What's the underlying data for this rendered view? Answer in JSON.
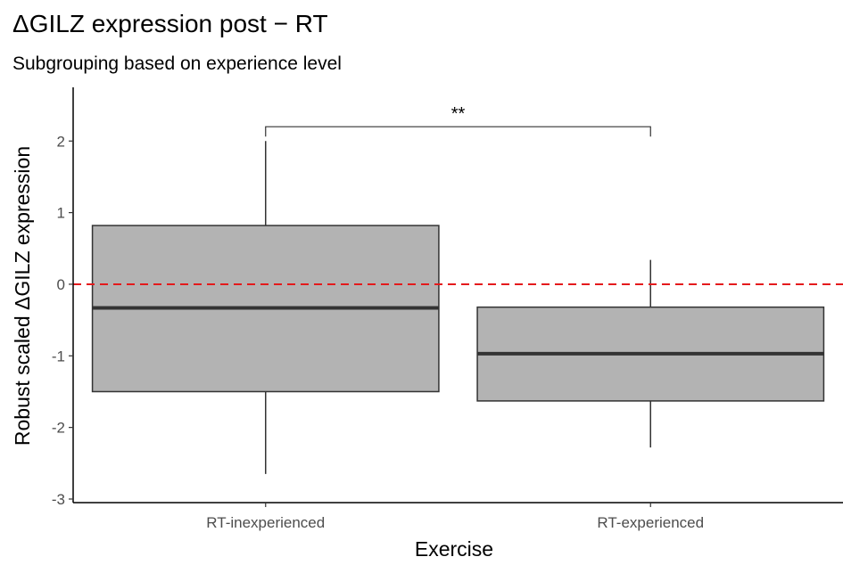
{
  "chart_data": {
    "type": "box",
    "title": "ΔGILZ expression post − RT",
    "subtitle": "Subgrouping based on experience level",
    "xlabel": "Exercise",
    "ylabel": "Robust scaled ΔGILZ expression",
    "ylim": [
      -3.05,
      2.75
    ],
    "yticks": [
      -3,
      -2,
      -1,
      0,
      1,
      2
    ],
    "ytick_labels": [
      "-3",
      "-2",
      "-1",
      "0",
      "1",
      "2"
    ],
    "categories": [
      "RT-inexperienced",
      "RT-experienced"
    ],
    "boxes": [
      {
        "category": "RT-inexperienced",
        "whisker_low": -2.65,
        "q1": -1.5,
        "median": -0.33,
        "q3": 0.82,
        "whisker_high": 2.0
      },
      {
        "category": "RT-experienced",
        "whisker_low": -2.28,
        "q1": -1.63,
        "median": -0.97,
        "q3": -0.32,
        "whisker_high": 0.34
      }
    ],
    "reference_line": {
      "y": 0,
      "color": "#e41a1c",
      "style": "dashed"
    },
    "significance": {
      "between": [
        "RT-inexperienced",
        "RT-experienced"
      ],
      "label": "**",
      "y": 2.2
    },
    "box_fill": "#b3b3b3",
    "box_stroke": "#333333",
    "grid": false
  }
}
